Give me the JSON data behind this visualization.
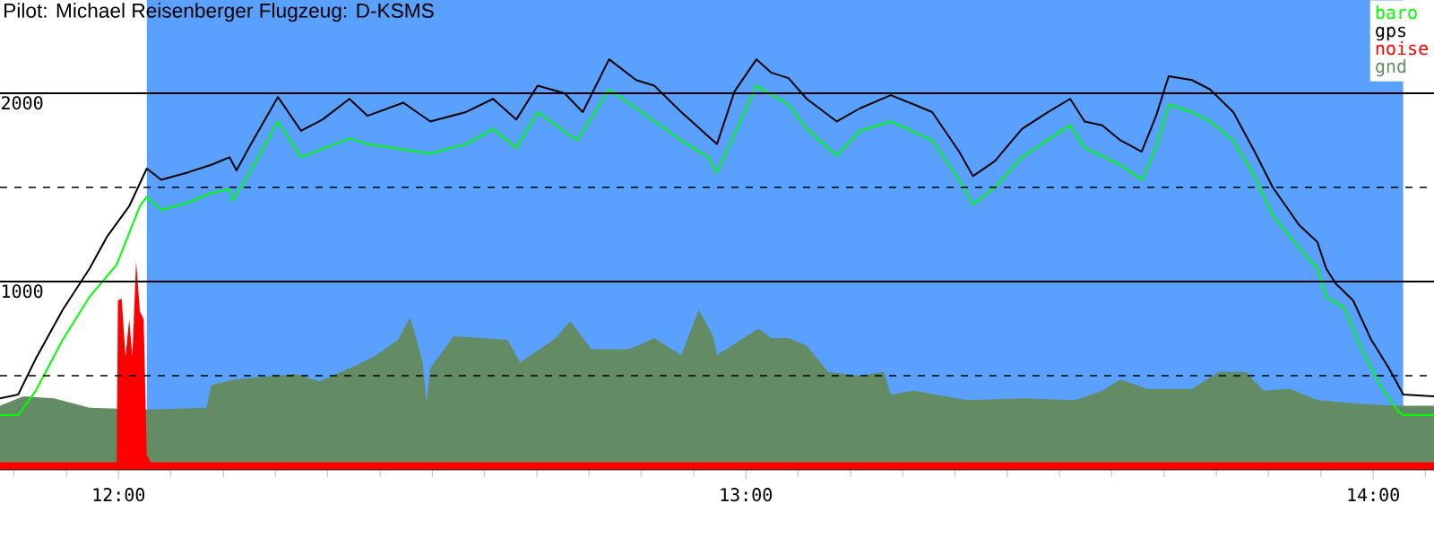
{
  "chart_data": {
    "type": "line",
    "title": "Pilot: Michael Reisenberger Flugzeug: D-KSMS",
    "xlim": [
      11.811,
      14.097
    ],
    "ylim": [
      0,
      2495
    ],
    "xticks": [
      {
        "value": 11.833,
        "label": null
      },
      {
        "value": 11.917,
        "label": null
      },
      {
        "value": 12,
        "label": "12:00"
      },
      {
        "value": 12.083,
        "label": null
      },
      {
        "value": 12.167,
        "label": null
      },
      {
        "value": 12.25,
        "label": null
      },
      {
        "value": 12.333,
        "label": null
      },
      {
        "value": 12.417,
        "label": null
      },
      {
        "value": 12.5,
        "label": null
      },
      {
        "value": 12.583,
        "label": null
      },
      {
        "value": 12.667,
        "label": null
      },
      {
        "value": 12.75,
        "label": null
      },
      {
        "value": 12.833,
        "label": null
      },
      {
        "value": 12.917,
        "label": null
      },
      {
        "value": 13,
        "label": "13:00"
      },
      {
        "value": 13.083,
        "label": null
      },
      {
        "value": 13.167,
        "label": null
      },
      {
        "value": 13.25,
        "label": null
      },
      {
        "value": 13.333,
        "label": null
      },
      {
        "value": 13.417,
        "label": null
      },
      {
        "value": 13.5,
        "label": null
      },
      {
        "value": 13.583,
        "label": null
      },
      {
        "value": 13.667,
        "label": null
      },
      {
        "value": 13.75,
        "label": null
      },
      {
        "value": 13.833,
        "label": null
      },
      {
        "value": 13.917,
        "label": null
      },
      {
        "value": 14,
        "label": "14:00"
      },
      {
        "value": 14.083,
        "label": null
      }
    ],
    "yticks": [
      {
        "value": 500,
        "label": null
      },
      1000,
      {
        "value": 1500,
        "label": null
      },
      2000
    ],
    "grid": "y",
    "legend": "top right",
    "bands": [
      {
        "axis": "x",
        "from": 12.045,
        "to": 14.048,
        "color": "#5aa0ff"
      }
    ],
    "series": [
      {
        "name": "baro",
        "color": "#00ff00",
        "x": [
          11.811,
          11.84,
          11.868,
          11.911,
          11.954,
          11.997,
          12.034,
          12.045,
          12.068,
          12.111,
          12.148,
          12.177,
          12.182,
          12.211,
          12.254,
          12.291,
          12.368,
          12.397,
          12.497,
          12.554,
          12.597,
          12.634,
          12.668,
          12.731,
          12.782,
          12.825,
          12.897,
          12.94,
          12.954,
          13.017,
          13.068,
          13.097,
          13.145,
          13.182,
          13.231,
          13.297,
          13.34,
          13.362,
          13.397,
          13.44,
          13.517,
          13.54,
          13.597,
          13.631,
          13.654,
          13.674,
          13.711,
          13.74,
          13.777,
          13.811,
          13.84,
          13.882,
          13.911,
          13.925,
          13.954,
          13.982,
          14.011,
          14.04,
          14.048,
          14.097
        ],
        "values": [
          290,
          290,
          420,
          690,
          920,
          1090,
          1400,
          1450,
          1380,
          1420,
          1470,
          1490,
          1430,
          1590,
          1850,
          1660,
          1760,
          1730,
          1680,
          1730,
          1810,
          1710,
          1900,
          1750,
          2020,
          1920,
          1750,
          1660,
          1580,
          2040,
          1940,
          1810,
          1670,
          1800,
          1850,
          1750,
          1540,
          1410,
          1500,
          1660,
          1830,
          1710,
          1620,
          1540,
          1710,
          1940,
          1900,
          1850,
          1750,
          1560,
          1350,
          1180,
          1070,
          920,
          860,
          640,
          450,
          310,
          290,
          290
        ]
      },
      {
        "name": "gps",
        "color": "#000000",
        "x": [
          11.811,
          11.84,
          11.868,
          11.911,
          11.954,
          11.982,
          12.017,
          12.045,
          12.068,
          12.111,
          12.148,
          12.177,
          12.188,
          12.211,
          12.254,
          12.291,
          12.325,
          12.368,
          12.397,
          12.454,
          12.497,
          12.554,
          12.597,
          12.634,
          12.668,
          12.711,
          12.74,
          12.782,
          12.825,
          12.854,
          12.897,
          12.954,
          12.982,
          13.017,
          13.04,
          13.068,
          13.097,
          13.145,
          13.182,
          13.231,
          13.268,
          13.297,
          13.34,
          13.362,
          13.397,
          13.44,
          13.482,
          13.517,
          13.54,
          13.568,
          13.597,
          13.631,
          13.654,
          13.674,
          13.711,
          13.74,
          13.777,
          13.811,
          13.84,
          13.882,
          13.911,
          13.925,
          13.94,
          13.968,
          13.997,
          14.025,
          14.048,
          14.097
        ],
        "values": [
          380,
          400,
          590,
          850,
          1070,
          1240,
          1400,
          1600,
          1540,
          1580,
          1620,
          1660,
          1590,
          1730,
          1980,
          1800,
          1860,
          1970,
          1880,
          1950,
          1850,
          1900,
          1970,
          1860,
          2040,
          2000,
          1900,
          2180,
          2070,
          2040,
          1900,
          1730,
          2010,
          2180,
          2110,
          2080,
          1970,
          1850,
          1920,
          1990,
          1940,
          1900,
          1690,
          1560,
          1640,
          1810,
          1900,
          1970,
          1850,
          1830,
          1750,
          1690,
          1880,
          2090,
          2070,
          2020,
          1900,
          1690,
          1500,
          1300,
          1210,
          1070,
          990,
          900,
          690,
          540,
          400,
          390
        ]
      },
      {
        "name": "noise",
        "color": "#ff0000",
        "type": "area",
        "x": [
          11.811,
          11.997,
          11.999,
          12.005,
          12.011,
          12.017,
          12.022,
          12.028,
          12.034,
          12.04,
          12.045,
          12.051,
          14.097
        ],
        "values": [
          40,
          40,
          900,
          910,
          600,
          800,
          600,
          1110,
          840,
          800,
          80,
          40,
          40
        ]
      },
      {
        "name": "gnd",
        "color": "#648c64",
        "type": "area",
        "x": [
          11.811,
          11.848,
          11.897,
          11.954,
          12.005,
          12.045,
          12.14,
          12.148,
          12.185,
          12.282,
          12.32,
          12.382,
          12.411,
          12.445,
          12.465,
          12.485,
          12.491,
          12.497,
          12.534,
          12.62,
          12.64,
          12.697,
          12.72,
          12.754,
          12.811,
          12.828,
          12.854,
          12.897,
          12.925,
          12.948,
          12.954,
          13.02,
          13.04,
          13.068,
          13.097,
          13.131,
          13.182,
          13.22,
          13.231,
          13.268,
          13.354,
          13.44,
          13.525,
          13.568,
          13.597,
          13.64,
          13.711,
          13.754,
          13.797,
          13.825,
          13.868,
          13.911,
          13.982,
          14.04,
          14.097
        ],
        "values": [
          340,
          390,
          380,
          330,
          null,
          320,
          330,
          450,
          480,
          510,
          470,
          560,
          610,
          690,
          810,
          570,
          350,
          540,
          710,
          690,
          570,
          700,
          790,
          640,
          640,
          660,
          700,
          610,
          850,
          710,
          610,
          750,
          700,
          700,
          660,
          520,
          500,
          520,
          400,
          420,
          370,
          380,
          370,
          420,
          480,
          430,
          430,
          520,
          520,
          420,
          430,
          370,
          350,
          340,
          340
        ]
      }
    ]
  }
}
